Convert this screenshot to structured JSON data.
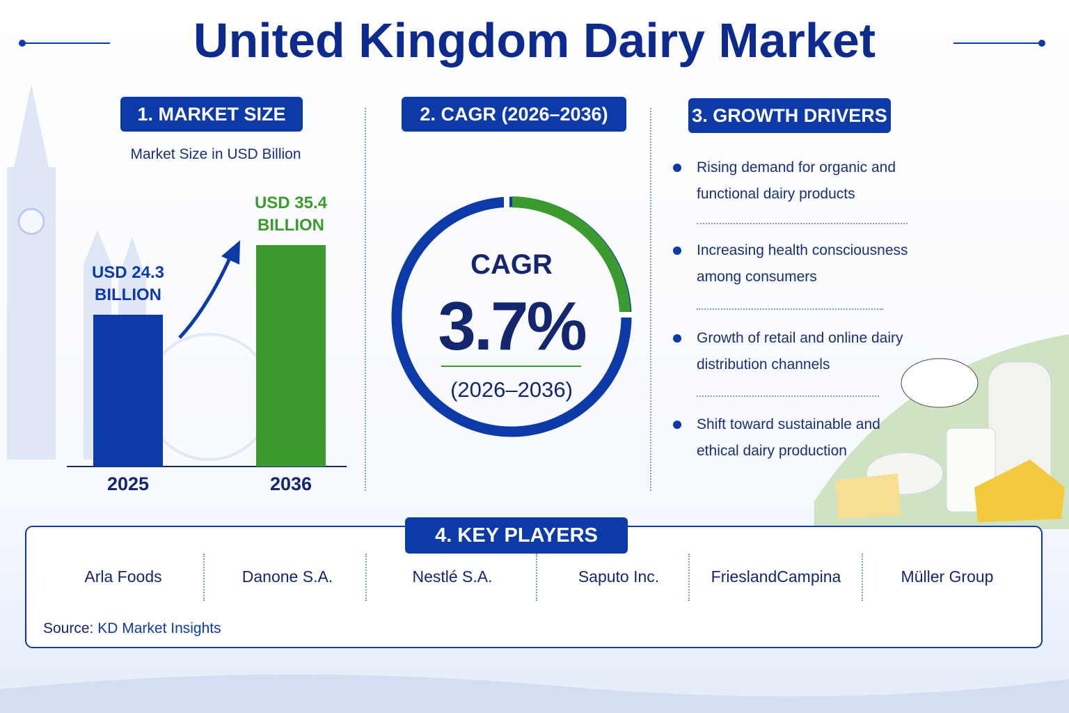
{
  "title": "United Kingdom Dairy Market",
  "market_size": {
    "heading": "1. MARKET SIZE",
    "subtitle": "Market Size in USD Billion"
  },
  "chart_data": {
    "type": "bar",
    "categories": [
      "2025",
      "2036"
    ],
    "values": [
      24.3,
      35.4
    ],
    "value_labels": [
      "USD 24.3 BILLION",
      "USD 35.4 BILLION"
    ],
    "colors": [
      "#0d3aa9",
      "#3c9b2f"
    ]
  },
  "cagr": {
    "heading": "2. CAGR (2026–2036)",
    "label": "CAGR",
    "value": "3.7%",
    "period": "(2026–2036)"
  },
  "growth_drivers": {
    "heading": "3. GROWTH DRIVERS",
    "items": [
      "Rising demand for organic and functional dairy products",
      "Increasing health consciousness among consumers",
      "Growth of retail and online dairy distribution channels",
      "Shift toward sustainable and ethical dairy production"
    ]
  },
  "key_players": {
    "heading": "4. KEY PLAYERS",
    "items": [
      "Arla Foods",
      "Danone S.A.",
      "Nestlé S.A.",
      "Saputo Inc.",
      "FrieslandCampina",
      "Müller Group"
    ]
  },
  "source": {
    "label": "Source:",
    "name": "KD Market Insights"
  }
}
